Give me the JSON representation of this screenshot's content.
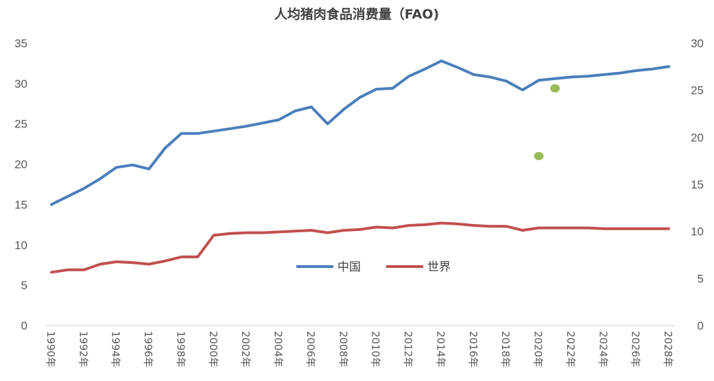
{
  "chart_data": {
    "type": "line",
    "title": "人均猪肉食品消费量（FAO)",
    "x": [
      "1990年",
      "1991年",
      "1992年",
      "1993年",
      "1994年",
      "1995年",
      "1996年",
      "1997年",
      "1998年",
      "1999年",
      "2000年",
      "2001年",
      "2002年",
      "2003年",
      "2004年",
      "2005年",
      "2006年",
      "2007年",
      "2008年",
      "2009年",
      "2010年",
      "2011年",
      "2012年",
      "2013年",
      "2014年",
      "2015年",
      "2016年",
      "2017年",
      "2018年",
      "2019年",
      "2020年",
      "2021年",
      "2022年",
      "2023年",
      "2024年",
      "2025年",
      "2026年",
      "2027年",
      "2028年"
    ],
    "x_tick_labels": [
      "1990年",
      "1992年",
      "1994年",
      "1996年",
      "1998年",
      "2000年",
      "2002年",
      "2004年",
      "2006年",
      "2008年",
      "2010年",
      "2012年",
      "2014年",
      "2016年",
      "2018年",
      "2020年",
      "2022年",
      "2024年",
      "2026年",
      "2028年"
    ],
    "ylim": [
      0,
      35
    ],
    "yticks": [
      0,
      5,
      10,
      15,
      20,
      25,
      30,
      35
    ],
    "y2lim": [
      0,
      30
    ],
    "y2ticks": [
      0,
      5,
      10,
      15,
      20,
      25,
      30
    ],
    "series": [
      {
        "name": "中国",
        "color": "#4a7ebb",
        "values": [
          15.0,
          16.0,
          17.0,
          18.2,
          19.6,
          19.9,
          19.4,
          22.0,
          23.8,
          23.8,
          24.1,
          24.4,
          24.7,
          25.1,
          25.5,
          26.6,
          27.1,
          25.0,
          26.8,
          28.3,
          29.3,
          29.4,
          30.9,
          31.8,
          32.8,
          32.0,
          31.1,
          30.8,
          30.3,
          29.2,
          30.4,
          30.6,
          30.8,
          30.9,
          31.1,
          31.3,
          31.6,
          31.8,
          32.1
        ]
      },
      {
        "name": "世界",
        "color": "#c0504d",
        "values": [
          6.6,
          6.9,
          6.9,
          7.6,
          7.9,
          7.8,
          7.6,
          8.0,
          8.5,
          8.5,
          11.2,
          11.4,
          11.5,
          11.5,
          11.6,
          11.7,
          11.8,
          11.5,
          11.8,
          11.9,
          12.2,
          12.1,
          12.4,
          12.5,
          12.7,
          12.6,
          12.4,
          12.3,
          12.3,
          11.8,
          12.1,
          12.1,
          12.1,
          12.1,
          12.0,
          12.0,
          12.0,
          12.0,
          12.0
        ]
      }
    ],
    "extra_points": [
      {
        "x": "2020年",
        "y": 18.0,
        "axis": "right",
        "color": "#9bbb59"
      },
      {
        "x": "2021年",
        "y": 25.2,
        "axis": "right",
        "color": "#9bbb59"
      }
    ],
    "legend_placement": "center",
    "grid": false
  }
}
